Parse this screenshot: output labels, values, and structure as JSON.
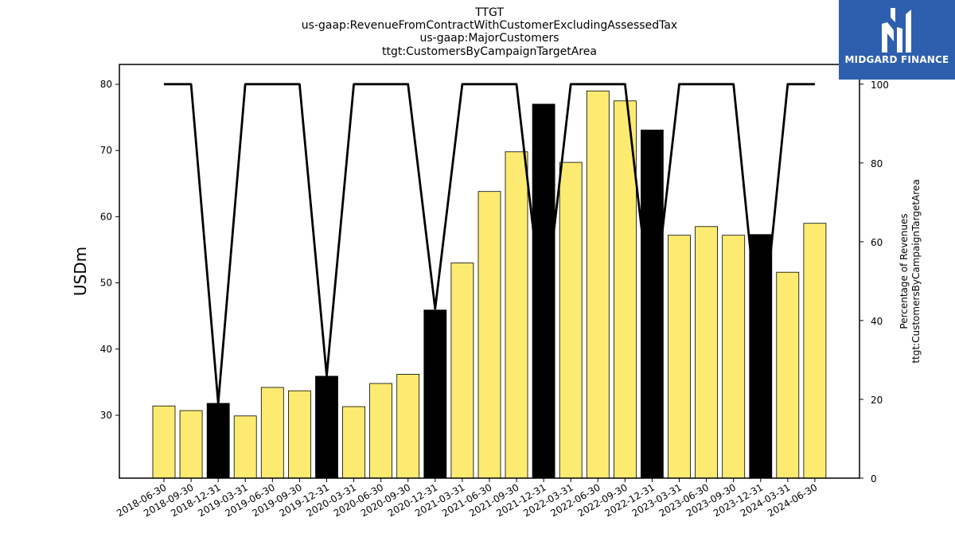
{
  "chart_data": {
    "type": "bar",
    "title_lines": [
      "TTGT",
      "us-gaap:RevenueFromContractWithCustomerExcludingAssessedTax",
      "us-gaap:MajorCustomers",
      "ttgt:CustomersByCampaignTargetArea"
    ],
    "ylabel": "USDm",
    "ylabel_right": [
      "Percentage of Revenues",
      "ttgt:CustomersByCampaignTargetArea"
    ],
    "categories": [
      "2018-06-30",
      "2018-09-30",
      "2018-12-31",
      "2019-03-31",
      "2019-06-30",
      "2019-09-30",
      "2019-12-31",
      "2020-03-31",
      "2020-06-30",
      "2020-09-30",
      "2020-12-31",
      "2021-03-31",
      "2021-06-30",
      "2021-09-30",
      "2021-12-31",
      "2022-03-31",
      "2022-06-30",
      "2022-09-30",
      "2022-12-31",
      "2023-03-31",
      "2023-06-30",
      "2023-09-30",
      "2023-12-31",
      "2024-03-31",
      "2024-06-30"
    ],
    "values": [
      31.4,
      30.7,
      31.8,
      29.9,
      34.2,
      33.7,
      35.9,
      31.3,
      34.8,
      36.2,
      45.9,
      53.0,
      63.8,
      69.8,
      77.0,
      68.2,
      79.0,
      77.5,
      73.1,
      57.2,
      58.5,
      57.2,
      57.3,
      51.6,
      59.0
    ],
    "bar_colors": [
      "#fdeb71",
      "#fdeb71",
      "#000000",
      "#fdeb71",
      "#fdeb71",
      "#fdeb71",
      "#000000",
      "#fdeb71",
      "#fdeb71",
      "#fdeb71",
      "#000000",
      "#fdeb71",
      "#fdeb71",
      "#fdeb71",
      "#000000",
      "#fdeb71",
      "#fdeb71",
      "#fdeb71",
      "#000000",
      "#fdeb71",
      "#fdeb71",
      "#fdeb71",
      "#000000",
      "#fdeb71",
      "#fdeb71"
    ],
    "line_series": {
      "values": [
        100,
        100,
        19,
        100,
        100,
        100,
        26,
        100,
        100,
        100,
        43,
        100,
        100,
        100,
        40,
        100,
        100,
        100,
        40,
        100,
        100,
        100,
        32,
        100,
        100
      ],
      "color": "#000000"
    },
    "ylim": [
      20.5,
      83
    ],
    "ylim_right": [
      0,
      105
    ],
    "yticks": [
      30,
      40,
      50,
      60,
      70,
      80
    ],
    "yticks_right": [
      0,
      20,
      40,
      60,
      80,
      100
    ],
    "grid": false,
    "bar_edge_color": "#000000"
  },
  "logo": {
    "text": "MIDGARD FINANCE",
    "background": "#2d5fae"
  }
}
